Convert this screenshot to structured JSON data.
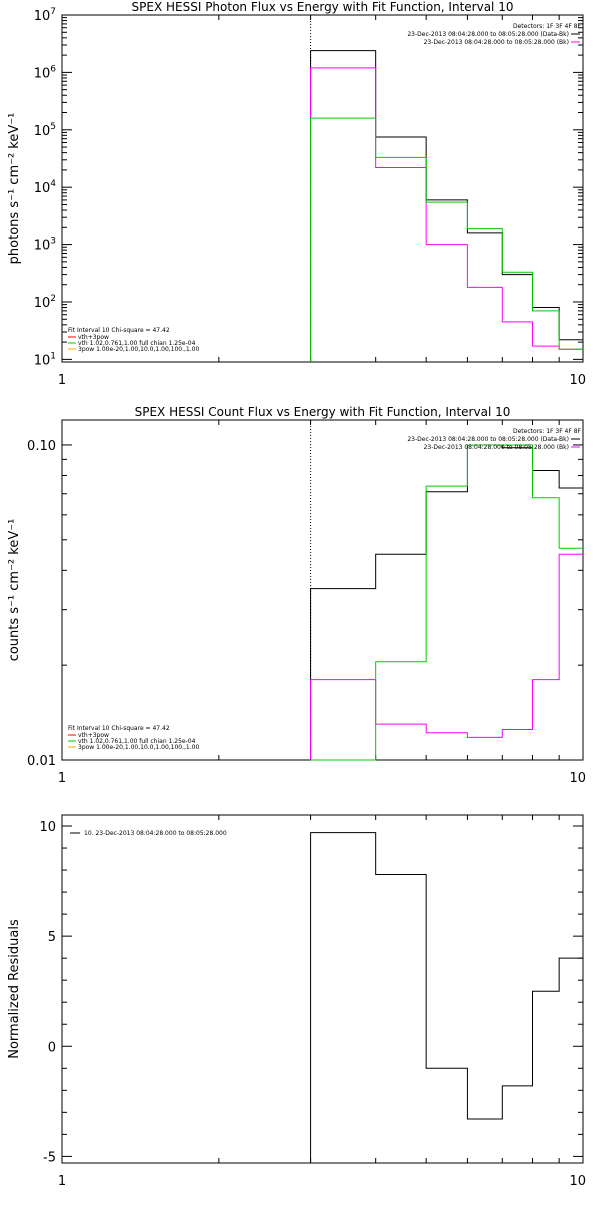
{
  "chart_data": [
    {
      "type": "line",
      "title": "SPEX HESSI Photon Flux vs Energy with Fit Function, Interval 10",
      "ylabel": "photons s⁻¹ cm⁻² keV⁻¹",
      "xscale": "log",
      "yscale": "log",
      "xlim": [
        1,
        10
      ],
      "ylim": [
        9,
        10000000
      ],
      "x_ticks": [
        {
          "v": 1,
          "label": "1"
        },
        {
          "v": 10,
          "label": "10"
        }
      ],
      "y_ticks": [
        {
          "v": 10,
          "base": "10",
          "exp": "1"
        },
        {
          "v": 100,
          "base": "10",
          "exp": "2"
        },
        {
          "v": 1000,
          "base": "10",
          "exp": "3"
        },
        {
          "v": 10000,
          "base": "10",
          "exp": "4"
        },
        {
          "v": 100000,
          "base": "10",
          "exp": "5"
        },
        {
          "v": 1000000,
          "base": "10",
          "exp": "6"
        },
        {
          "v": 10000000,
          "base": "10",
          "exp": "7"
        }
      ],
      "vline": 3,
      "legend_header": "Detectors: 1F 3F 4F 8F",
      "legend_right": [
        {
          "text": "23-Dec-2013 08:04:28.000 to 08:05:28.000 (Data-Bk)",
          "color": "#000000"
        },
        {
          "text": "23-Dec-2013 08:04:28.000 to 08:05:28.000 (Bk)",
          "color": "#ff00ff"
        }
      ],
      "fit_header": "Fit Interval 10   Chi-square = 47.42",
      "fit_legend": [
        {
          "text": "vth+3pow",
          "color": "#ff0000"
        },
        {
          "text": "vth 1.02,0.761,1.00  full chian 1.25e-04",
          "color": "#00cc00"
        },
        {
          "text": "3pow 1.00e-20,1.00,10.0,1.00,100.,1.00",
          "color": "#ffaa00"
        }
      ],
      "series": [
        {
          "color": "#000000",
          "edges": [
            3,
            4,
            5,
            6,
            7,
            8,
            9,
            10
          ],
          "values": [
            2400000,
            75000,
            6000,
            1600,
            300,
            80,
            22
          ]
        },
        {
          "color": "#ff00ff",
          "edges": [
            3,
            4,
            5,
            6,
            7,
            8,
            9,
            10
          ],
          "values": [
            1200000,
            22000,
            1000,
            180,
            45,
            17,
            15
          ]
        },
        {
          "color": "#00cc00",
          "edges": [
            3,
            4,
            5,
            6,
            7,
            8,
            9,
            10
          ],
          "values": [
            160000,
            33000,
            5500,
            1900,
            330,
            70,
            15
          ]
        }
      ]
    },
    {
      "type": "line",
      "title": "SPEX HESSI Count Flux vs Energy with Fit Function, Interval 10",
      "ylabel": "counts s⁻¹ cm⁻² keV⁻¹",
      "xscale": "log",
      "yscale": "log",
      "xlim": [
        1,
        10
      ],
      "ylim": [
        0.01,
        0.12
      ],
      "x_ticks": [
        {
          "v": 1,
          "label": "1"
        },
        {
          "v": 10,
          "label": "10"
        }
      ],
      "y_ticks": [
        {
          "v": 0.01,
          "label": "0.01"
        },
        {
          "v": 0.1,
          "label": "0.10"
        }
      ],
      "vline": 3,
      "legend_header": "Detectors: 1F 3F 4F 8F",
      "legend_right": [
        {
          "text": "23-Dec-2013 08:04:28.000 to 08:05:28.000 (Data-Bk)",
          "color": "#000000"
        },
        {
          "text": "23-Dec-2013 08:04:28.000 to 08:05:28.000 (Bk)",
          "color": "#ff00ff"
        }
      ],
      "fit_header": "Fit Interval 10   Chi-square = 47.42",
      "fit_legend": [
        {
          "text": "vth+3pow",
          "color": "#ff0000"
        },
        {
          "text": "vth 1.02,0.761,1.00  full chian 1.25e-04",
          "color": "#00cc00"
        },
        {
          "text": "3pow 1.00e-20,1.00,10.0,1.00,100.,1.00",
          "color": "#ffaa00"
        }
      ],
      "series": [
        {
          "color": "#000000",
          "edges": [
            3,
            4,
            5,
            6,
            7,
            8,
            9,
            10
          ],
          "values": [
            0.035,
            0.045,
            0.071,
            0.1,
            0.098,
            0.083,
            0.073
          ]
        },
        {
          "color": "#ff00ff",
          "edges": [
            3,
            4,
            5,
            6,
            7,
            8,
            9,
            10
          ],
          "values": [
            0.018,
            0.013,
            0.0122,
            0.0118,
            0.0125,
            0.018,
            0.045
          ]
        },
        {
          "color": "#00cc00",
          "edges": [
            3,
            4,
            5,
            6,
            7,
            8,
            9,
            10
          ],
          "values": [
            0.005,
            0.0205,
            0.074,
            0.1,
            0.1,
            0.068,
            0.047
          ]
        }
      ]
    },
    {
      "type": "line",
      "title": "",
      "ylabel": "Normalized Residuals",
      "xscale": "log",
      "yscale": "linear",
      "xlim": [
        1,
        10
      ],
      "ylim": [
        -5.3,
        10.5
      ],
      "x_ticks": [
        {
          "v": 1,
          "label": "1"
        },
        {
          "v": 10,
          "label": "10"
        }
      ],
      "y_ticks": [
        {
          "v": -5,
          "label": "-5"
        },
        {
          "v": 0,
          "label": "0"
        },
        {
          "v": 5,
          "label": "5"
        },
        {
          "v": 10,
          "label": "10"
        }
      ],
      "legend_left": [
        {
          "text": "10. 23-Dec-2013 08:04:28.000 to 08:05:28.000",
          "color": "#000000"
        }
      ],
      "series": [
        {
          "color": "#000000",
          "edges": [
            3,
            4,
            5,
            6,
            7,
            8,
            9,
            10
          ],
          "values": [
            9.7,
            7.8,
            -1.0,
            -3.3,
            -1.8,
            2.5,
            4.0
          ]
        }
      ]
    }
  ]
}
